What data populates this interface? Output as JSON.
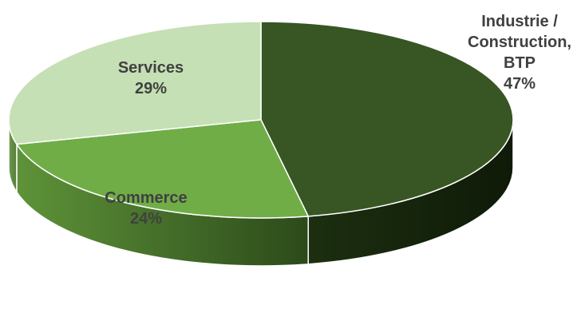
{
  "chart_data": {
    "type": "pie",
    "style": "3d",
    "title": "",
    "slices": [
      {
        "key": "industrie",
        "label_lines": [
          "Industrie /",
          "Construction,",
          "BTP"
        ],
        "value": 47,
        "value_label": "47%",
        "color": "#375623",
        "side_color": "#1f3313",
        "label_color": "#404040"
      },
      {
        "key": "commerce",
        "label_lines": [
          "Commerce"
        ],
        "value": 24,
        "value_label": "24%",
        "color": "#70ad47",
        "side_color": "#4f7d30",
        "label_color": "#404040"
      },
      {
        "key": "services",
        "label_lines": [
          "Services"
        ],
        "value": 29,
        "value_label": "29%",
        "color": "#c5e0b4",
        "side_color": "#9dbf86",
        "label_color": "#404040"
      }
    ],
    "start_position": "top",
    "direction": "clockwise",
    "label_placement": {
      "industrie": "outside-top-right",
      "commerce": "inside",
      "services": "inside"
    }
  }
}
